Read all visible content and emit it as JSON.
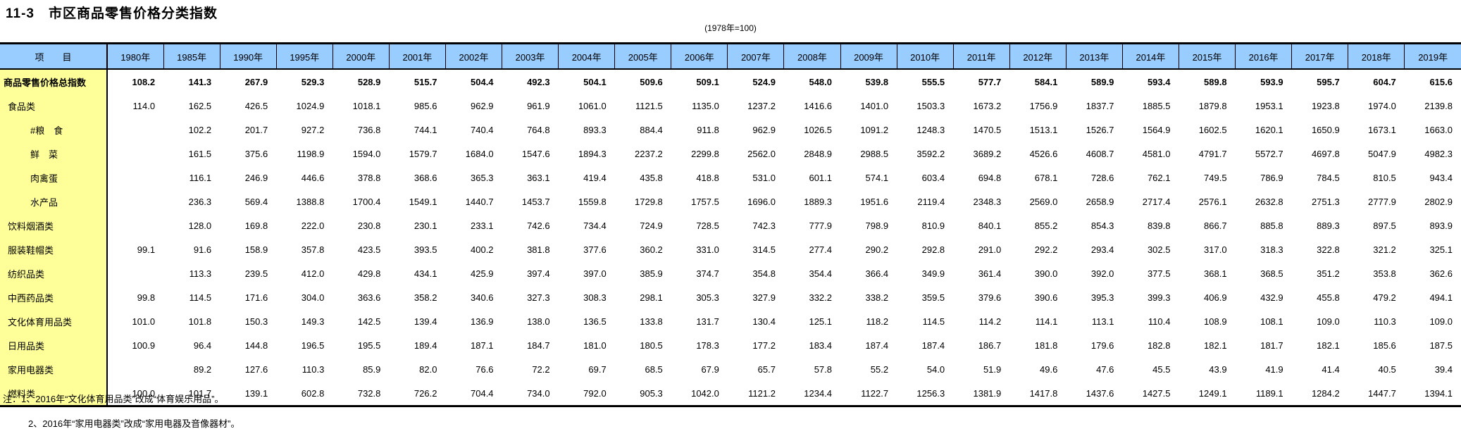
{
  "page": {
    "title": "11-3　市区商品零售价格分类指数",
    "subtitle": "(1978年=100)"
  },
  "colors": {
    "header_bg": "#99CCFF",
    "label_bg": "#FFFF99",
    "border": "#000000"
  },
  "notes": {
    "line1": "注：1、2016年“文化体育用品类”改成“体育娱乐用品”。",
    "line2": "2、2016年“家用电器类”改成“家用电器及音像器材”。"
  },
  "chart_data": {
    "type": "table",
    "title": "11-3 市区商品零售价格分类指数",
    "subtitle": "(1978年=100)"
  },
  "table": {
    "corner_label": "项　　目",
    "columns": [
      "1980年",
      "1985年",
      "1990年",
      "1995年",
      "2000年",
      "2001年",
      "2002年",
      "2003年",
      "2004年",
      "2005年",
      "2006年",
      "2007年",
      "2008年",
      "2009年",
      "2010年",
      "2011年",
      "2012年",
      "2013年",
      "2014年",
      "2015年",
      "2016年",
      "2017年",
      "2018年",
      "2019年"
    ],
    "rows": [
      {
        "label": "商品零售价格总指数",
        "indent": 0,
        "bold": true,
        "values": [
          "108.2",
          "141.3",
          "267.9",
          "529.3",
          "528.9",
          "515.7",
          "504.4",
          "492.3",
          "504.1",
          "509.6",
          "509.1",
          "524.9",
          "548.0",
          "539.8",
          "555.5",
          "577.7",
          "584.1",
          "589.9",
          "593.4",
          "589.8",
          "593.9",
          "595.7",
          "604.7",
          "615.6"
        ]
      },
      {
        "label": "食品类",
        "indent": 1,
        "bold": false,
        "values": [
          "114.0",
          "162.5",
          "426.5",
          "1024.9",
          "1018.1",
          "985.6",
          "962.9",
          "961.9",
          "1061.0",
          "1121.5",
          "1135.0",
          "1237.2",
          "1416.6",
          "1401.0",
          "1503.3",
          "1673.2",
          "1756.9",
          "1837.7",
          "1885.5",
          "1879.8",
          "1953.1",
          "1923.8",
          "1974.0",
          "2139.8"
        ]
      },
      {
        "label": "#粮　食",
        "indent": 2,
        "bold": false,
        "values": [
          "",
          "102.2",
          "201.7",
          "927.2",
          "736.8",
          "744.1",
          "740.4",
          "764.8",
          "893.3",
          "884.4",
          "911.8",
          "962.9",
          "1026.5",
          "1091.2",
          "1248.3",
          "1470.5",
          "1513.1",
          "1526.7",
          "1564.9",
          "1602.5",
          "1620.1",
          "1650.9",
          "1673.1",
          "1663.0"
        ]
      },
      {
        "label": "鲜　菜",
        "indent": 2,
        "bold": false,
        "values": [
          "",
          "161.5",
          "375.6",
          "1198.9",
          "1594.0",
          "1579.7",
          "1684.0",
          "1547.6",
          "1894.3",
          "2237.2",
          "2299.8",
          "2562.0",
          "2848.9",
          "2988.5",
          "3592.2",
          "3689.2",
          "4526.6",
          "4608.7",
          "4581.0",
          "4791.7",
          "5572.7",
          "4697.8",
          "5047.9",
          "4982.3"
        ]
      },
      {
        "label": "肉禽蛋",
        "indent": 2,
        "bold": false,
        "values": [
          "",
          "116.1",
          "246.9",
          "446.6",
          "378.8",
          "368.6",
          "365.3",
          "363.1",
          "419.4",
          "435.8",
          "418.8",
          "531.0",
          "601.1",
          "574.1",
          "603.4",
          "694.8",
          "678.1",
          "728.6",
          "762.1",
          "749.5",
          "786.9",
          "784.5",
          "810.5",
          "943.4"
        ]
      },
      {
        "label": "水产品",
        "indent": 2,
        "bold": false,
        "values": [
          "",
          "236.3",
          "569.4",
          "1388.8",
          "1700.4",
          "1549.1",
          "1440.7",
          "1453.7",
          "1559.8",
          "1729.8",
          "1757.5",
          "1696.0",
          "1889.3",
          "1951.6",
          "2119.4",
          "2348.3",
          "2569.0",
          "2658.9",
          "2717.4",
          "2576.1",
          "2632.8",
          "2751.3",
          "2777.9",
          "2802.9"
        ]
      },
      {
        "label": "饮料烟酒类",
        "indent": 1,
        "bold": false,
        "values": [
          "",
          "128.0",
          "169.8",
          "222.0",
          "230.8",
          "230.1",
          "233.1",
          "742.6",
          "734.4",
          "724.9",
          "728.5",
          "742.3",
          "777.9",
          "798.9",
          "810.9",
          "840.1",
          "855.2",
          "854.3",
          "839.8",
          "866.7",
          "885.8",
          "889.3",
          "897.5",
          "893.9"
        ]
      },
      {
        "label": "服装鞋帽类",
        "indent": 1,
        "bold": false,
        "values": [
          "99.1",
          "91.6",
          "158.9",
          "357.8",
          "423.5",
          "393.5",
          "400.2",
          "381.8",
          "377.6",
          "360.2",
          "331.0",
          "314.5",
          "277.4",
          "290.2",
          "292.8",
          "291.0",
          "292.2",
          "293.4",
          "302.5",
          "317.0",
          "318.3",
          "322.8",
          "321.2",
          "325.1"
        ]
      },
      {
        "label": "纺织品类",
        "indent": 1,
        "bold": false,
        "values": [
          "",
          "113.3",
          "239.5",
          "412.0",
          "429.8",
          "434.1",
          "425.9",
          "397.4",
          "397.0",
          "385.9",
          "374.7",
          "354.8",
          "354.4",
          "366.4",
          "349.9",
          "361.4",
          "390.0",
          "392.0",
          "377.5",
          "368.1",
          "368.5",
          "351.2",
          "353.8",
          "362.6"
        ]
      },
      {
        "label": "中西药品类",
        "indent": 1,
        "bold": false,
        "values": [
          "99.8",
          "114.5",
          "171.6",
          "304.0",
          "363.6",
          "358.2",
          "340.6",
          "327.3",
          "308.3",
          "298.1",
          "305.3",
          "327.9",
          "332.2",
          "338.2",
          "359.5",
          "379.6",
          "390.6",
          "395.3",
          "399.3",
          "406.9",
          "432.9",
          "455.8",
          "479.2",
          "494.1"
        ]
      },
      {
        "label": "文化体育用品类",
        "indent": 1,
        "bold": false,
        "values": [
          "101.0",
          "101.8",
          "150.3",
          "149.3",
          "142.5",
          "139.4",
          "136.9",
          "138.0",
          "136.5",
          "133.8",
          "131.7",
          "130.4",
          "125.1",
          "118.2",
          "114.5",
          "114.2",
          "114.1",
          "113.1",
          "110.4",
          "108.9",
          "108.1",
          "109.0",
          "110.3",
          "109.0"
        ]
      },
      {
        "label": "日用品类",
        "indent": 1,
        "bold": false,
        "values": [
          "100.9",
          "96.4",
          "144.8",
          "196.5",
          "195.5",
          "189.4",
          "187.1",
          "184.7",
          "181.0",
          "180.5",
          "178.3",
          "177.2",
          "183.4",
          "187.4",
          "187.4",
          "186.7",
          "181.8",
          "179.6",
          "182.8",
          "182.1",
          "181.7",
          "182.1",
          "185.6",
          "187.5"
        ]
      },
      {
        "label": "家用电器类",
        "indent": 1,
        "bold": false,
        "values": [
          "",
          "89.2",
          "127.6",
          "110.3",
          "85.9",
          "82.0",
          "76.6",
          "72.2",
          "69.7",
          "68.5",
          "67.9",
          "65.7",
          "57.8",
          "55.2",
          "54.0",
          "51.9",
          "49.6",
          "47.6",
          "45.5",
          "43.9",
          "41.9",
          "41.4",
          "40.5",
          "39.4"
        ]
      },
      {
        "label": "燃料类",
        "indent": 1,
        "bold": false,
        "values": [
          "100.0",
          "101.7",
          "139.1",
          "602.8",
          "732.8",
          "726.2",
          "704.4",
          "734.0",
          "792.0",
          "905.3",
          "1042.0",
          "1121.2",
          "1234.4",
          "1122.7",
          "1256.3",
          "1381.9",
          "1417.8",
          "1437.6",
          "1427.5",
          "1249.1",
          "1189.1",
          "1284.2",
          "1447.7",
          "1394.1"
        ]
      }
    ]
  }
}
